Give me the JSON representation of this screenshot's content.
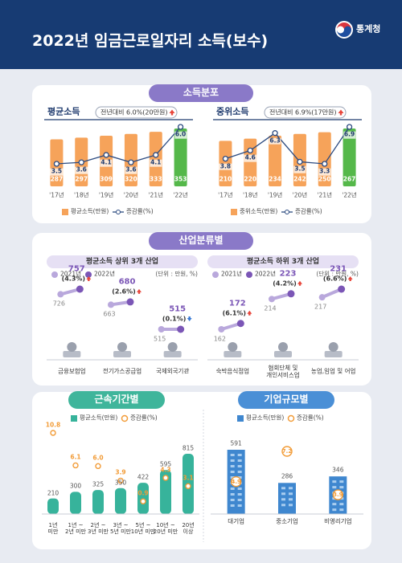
{
  "header": {
    "title": "2022년 임금근로일자리 소득(보수)",
    "org": "통계청"
  },
  "chart_data": [
    {
      "type": "bar-line",
      "section": "소득분포",
      "section_color": "#8a79c8",
      "title": "평균소득",
      "note": "전년대비 6.0%(20만원)",
      "categories": [
        "'17년",
        "'18년",
        "'19년",
        "'20년",
        "'21년",
        "'22년"
      ],
      "series": [
        {
          "name": "평균소득(만원)",
          "color": "#f6a35a",
          "colors": [
            "#f6a35a",
            "#f6a35a",
            "#f6a35a",
            "#f6a35a",
            "#f6a35a",
            "#55b84a"
          ],
          "values": [
            287,
            297,
            309,
            320,
            333,
            353
          ]
        },
        {
          "name": "증감률(%)",
          "color": "#2b4a80",
          "values": [
            3.5,
            3.6,
            4.1,
            3.6,
            4.1,
            6.0
          ],
          "value_labels": [
            "3.5",
            "3.6",
            "4.1",
            "3.6",
            "4.1",
            "6.0"
          ]
        }
      ]
    },
    {
      "type": "bar-line",
      "title": "중위소득",
      "note": "전년대비 6.9%(17만원)",
      "categories": [
        "'17년",
        "'18년",
        "'19년",
        "'20년",
        "'21년",
        "'22년"
      ],
      "series": [
        {
          "name": "중위소득(만원)",
          "color": "#f6a35a",
          "colors": [
            "#f6a35a",
            "#f6a35a",
            "#f6a35a",
            "#f6a35a",
            "#f6a35a",
            "#55b84a"
          ],
          "values": [
            210,
            220,
            234,
            242,
            250,
            267
          ]
        },
        {
          "name": "증감률(%)",
          "color": "#2b4a80",
          "values": [
            3.8,
            4.6,
            6.3,
            3.5,
            3.3,
            6.9
          ]
        }
      ]
    },
    {
      "type": "slope",
      "section": "산업분류별",
      "section_color": "#8a79c8",
      "title": "평균소득 상위 3개 산업",
      "unit": "(단위 : 만원, %)",
      "categories": [
        "금융보험업",
        "전기가스공급업",
        "국제외국기관"
      ],
      "series": [
        {
          "name": "2021년",
          "color": "#b9a8dc",
          "values": [
            726,
            663,
            515
          ]
        },
        {
          "name": "2022년",
          "color": "#7b56b6",
          "values": [
            757,
            680,
            515
          ]
        }
      ],
      "change": {
        "values": [
          4.3,
          2.6,
          -0.1
        ],
        "value_labels": [
          "(4.3%)",
          "(2.6%)",
          "(0.1%)"
        ]
      }
    },
    {
      "type": "slope",
      "title": "평균소득 하위 3개 산업",
      "unit": "(단위 : 만원, %)",
      "categories": [
        "숙박음식점업",
        "협회단체 및\n개인서비스업",
        "농업,임업 및 어업"
      ],
      "series": [
        {
          "name": "2021년",
          "color": "#b9a8dc",
          "values": [
            162,
            214,
            217
          ]
        },
        {
          "name": "2022년",
          "color": "#7b56b6",
          "values": [
            172,
            223,
            231
          ]
        }
      ],
      "change": {
        "values": [
          6.1,
          4.2,
          6.6
        ],
        "value_labels": [
          "(6.1%)",
          "(4.2%)",
          "(6.6%)"
        ]
      }
    },
    {
      "type": "bar-dot",
      "section": "근속기간별",
      "section_color": "#3fb59b",
      "categories": [
        "1년\n미만",
        "1년 ~\n2년 미만",
        "2년 ~\n3년 미만",
        "3년 ~\n5년 미만",
        "5년 ~\n10년 미만",
        "10년 ~\n20년 미만",
        "20년\n이상"
      ],
      "series": [
        {
          "name": "평균소득(만원)",
          "color": "#37b39b",
          "values": [
            210,
            300,
            325,
            350,
            422,
            595,
            815
          ]
        },
        {
          "name": "증감률(%)",
          "color": "#f29c38",
          "values": [
            10.8,
            6.1,
            6.0,
            3.9,
            0.9,
            4.3,
            3.1
          ],
          "value_labels": [
            "10.8",
            "6.1",
            "6.0",
            "3.9",
            "0.9",
            "4.3",
            "3.1"
          ]
        }
      ]
    },
    {
      "type": "building",
      "section": "기업규모별",
      "section_color": "#4a8fd6",
      "categories": [
        "대기업",
        "중소기업",
        "비영리기업"
      ],
      "series": [
        {
          "name": "평균소득(만원)",
          "color": "#3f87cf",
          "values": [
            591,
            286,
            346
          ]
        },
        {
          "name": "증감률(%)",
          "color": "#f29c38",
          "values": [
            4.9,
            7.2,
            3.9
          ]
        }
      ]
    }
  ]
}
